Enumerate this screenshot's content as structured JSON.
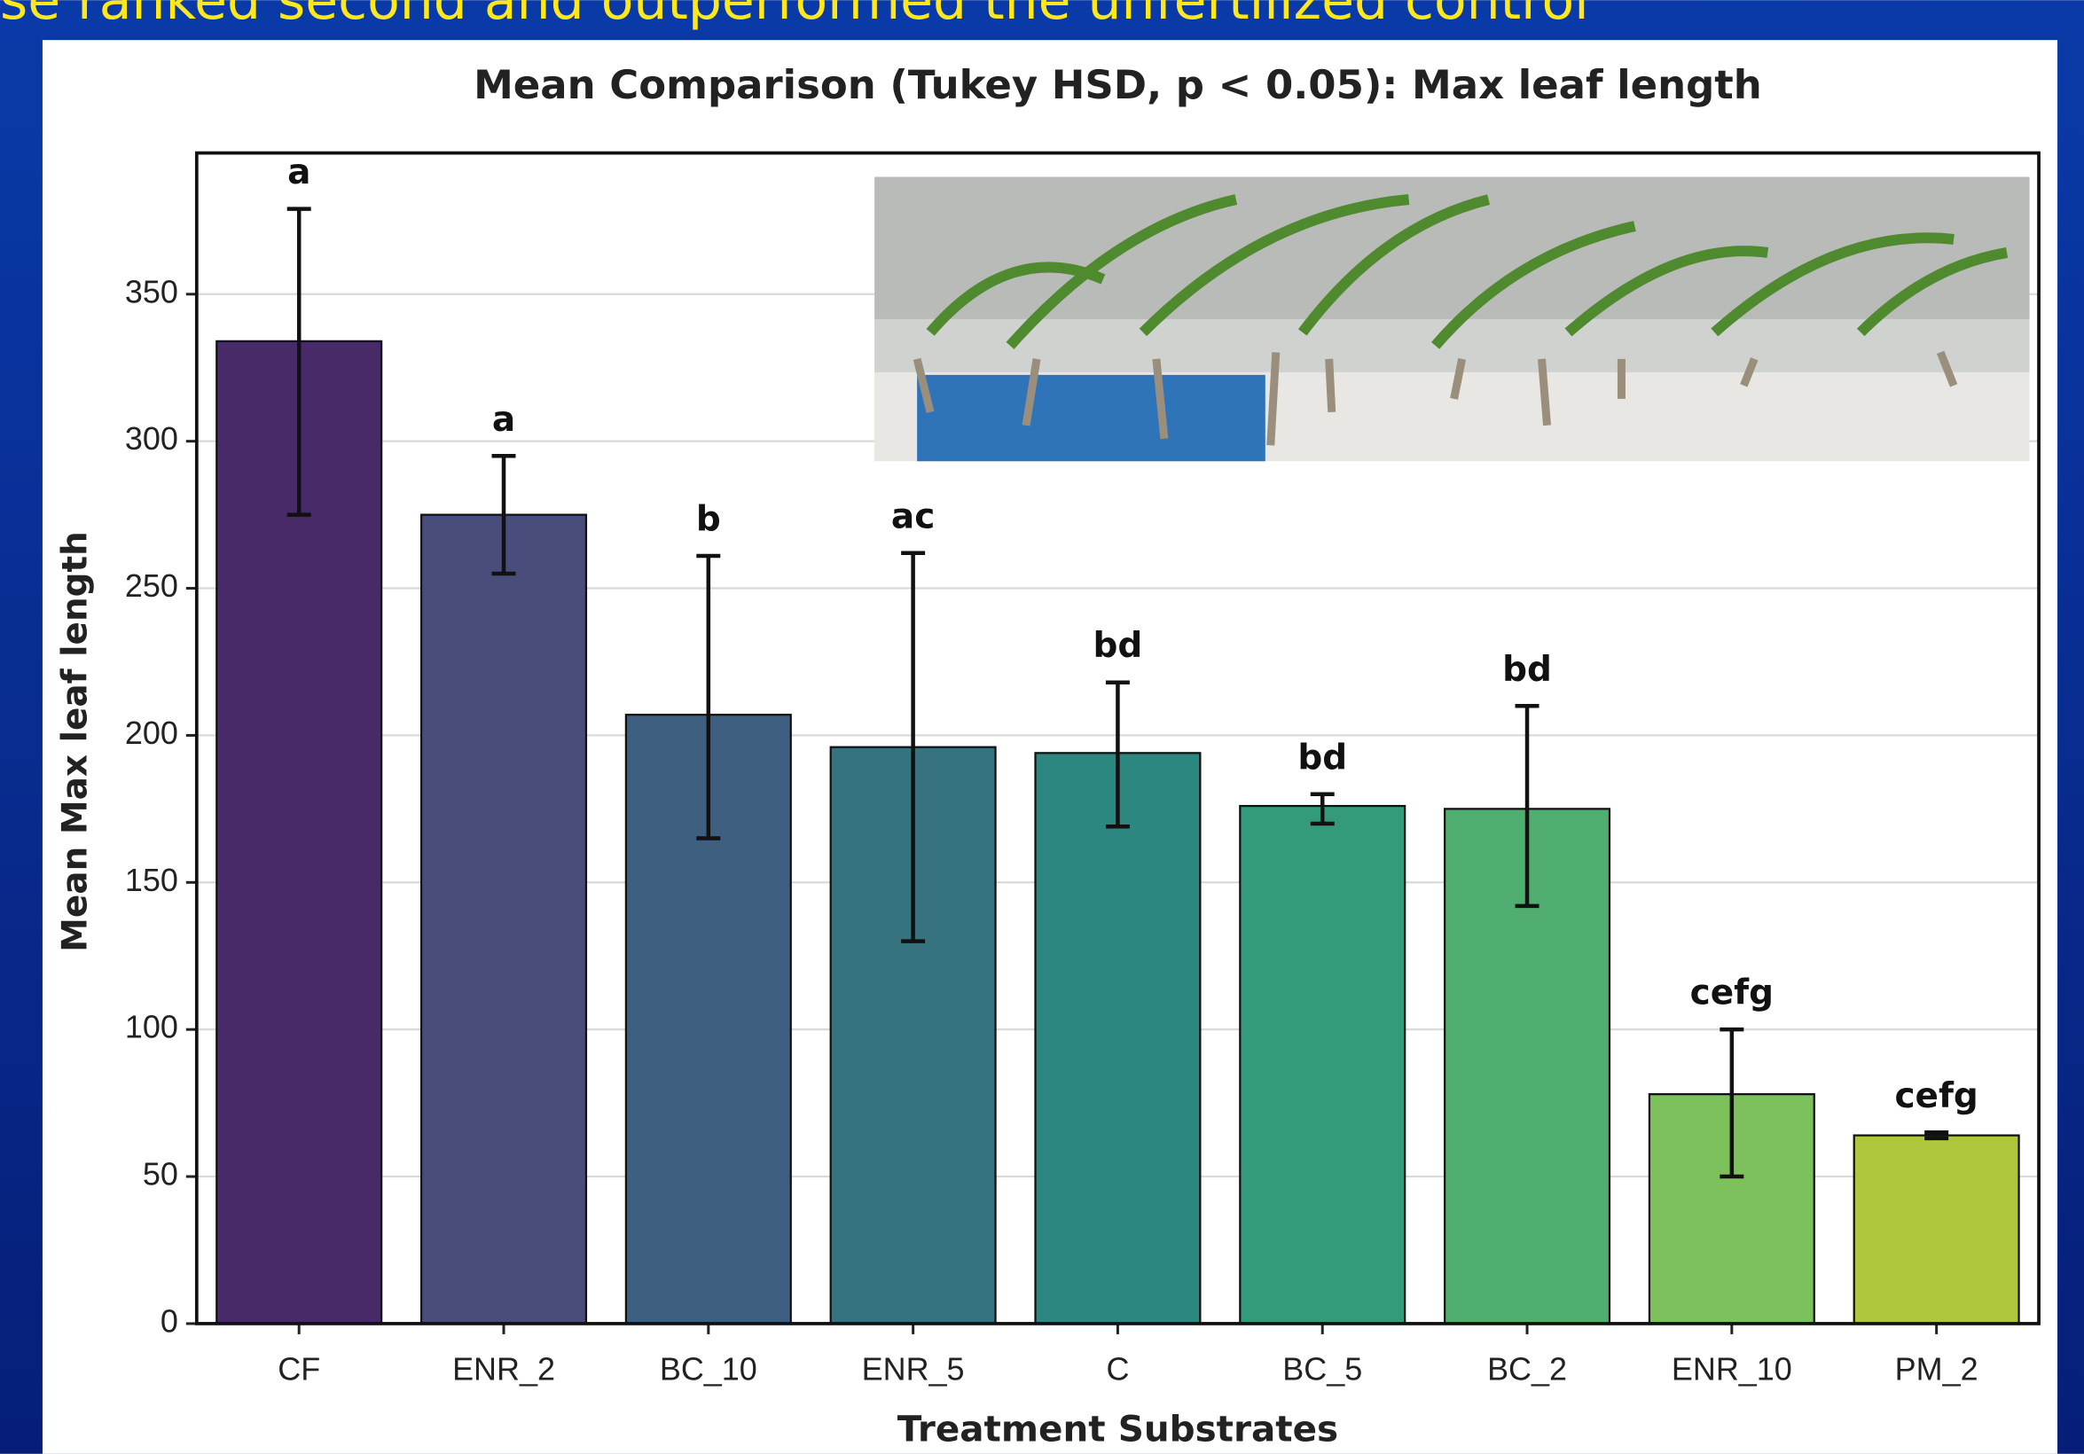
{
  "slide_caption": "se ranked second and outperformed the unfertilized control",
  "chart_data": {
    "type": "bar",
    "title": "Mean Comparison (Tukey HSD, p < 0.05): Max leaf length",
    "x_label": "Treatment Substrates",
    "y_label": "Mean Max leaf length",
    "categories": [
      "CF",
      "ENR_2",
      "BC_10",
      "ENR_5",
      "C",
      "BC_5",
      "BC_2",
      "ENR_10",
      "PM_2"
    ],
    "values": [
      334,
      275,
      207,
      196,
      194,
      176,
      175,
      78,
      64
    ],
    "error_low": [
      275,
      255,
      165,
      130,
      169,
      170,
      142,
      50,
      63
    ],
    "error_high": [
      379,
      295,
      261,
      262,
      218,
      180,
      210,
      100,
      65
    ],
    "group_labels": [
      "a",
      "a",
      "b",
      "ac",
      "bd",
      "bd",
      "bd",
      "cefg",
      "cefg"
    ],
    "colors": [
      "#482a69",
      "#484d7c",
      "#3f5f81",
      "#37737f",
      "#2b877f",
      "#339a7b",
      "#50ae70",
      "#7dc15d",
      "#adc63b"
    ],
    "ylim": [
      0,
      398
    ],
    "yticks": [
      0,
      50,
      100,
      150,
      200,
      250,
      300,
      350
    ],
    "grid": true
  }
}
